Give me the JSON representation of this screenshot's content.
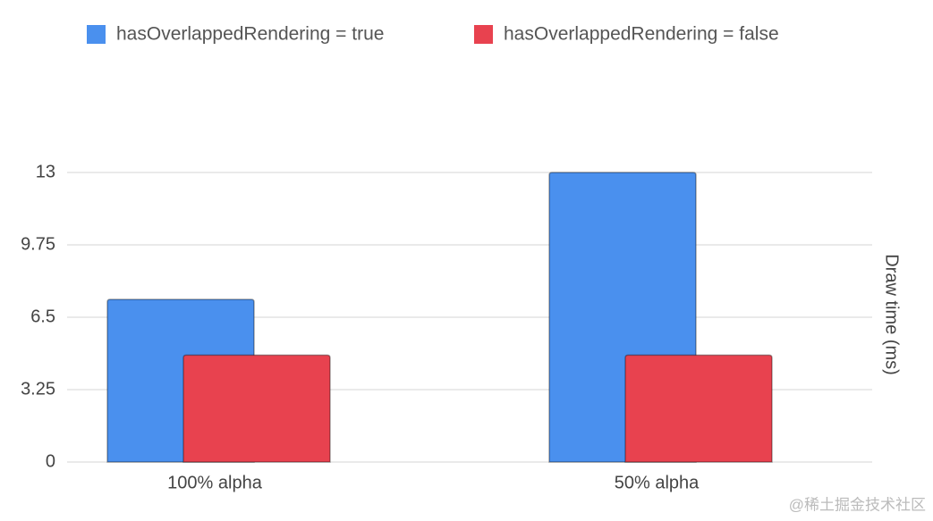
{
  "chart_data": {
    "type": "bar",
    "y_axis_label": "Draw time (ms)",
    "categories": [
      "100% alpha",
      "50% alpha"
    ],
    "series": [
      {
        "name": "hasOverlappedRendering = true",
        "color": "#4a90ee",
        "values": [
          7.3,
          13
        ]
      },
      {
        "name": "hasOverlappedRendering = false",
        "color": "#e8424f",
        "values": [
          4.8,
          4.8
        ]
      }
    ],
    "ylim": [
      0,
      13
    ],
    "yticks": [
      0,
      3.25,
      6.5,
      9.75,
      13
    ],
    "grid": true,
    "legend": "top",
    "watermark": "@稀土掘金技术社区"
  }
}
